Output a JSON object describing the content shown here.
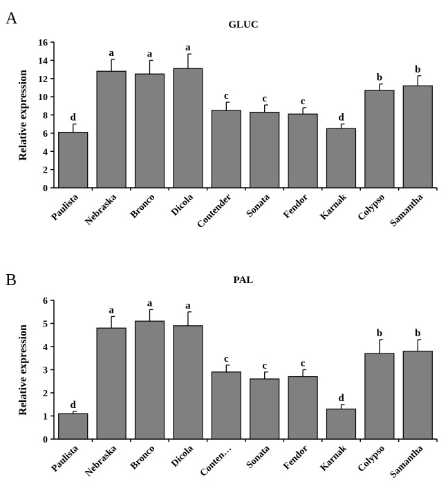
{
  "chart_data": [
    {
      "type": "bar",
      "panel": "A",
      "title": "GLUC",
      "xlabel": "",
      "ylabel": "Relative expression",
      "ylim": [
        0,
        16
      ],
      "yticks": [
        0,
        2,
        4,
        6,
        8,
        10,
        12,
        14,
        16
      ],
      "categories": [
        "Paulista",
        "Nebraska",
        "Bronco",
        "Dicola",
        "Contender",
        "Sonata",
        "Fendor",
        "Karnak",
        "Colypso",
        "Samantha"
      ],
      "values": [
        6.1,
        12.8,
        12.5,
        13.1,
        8.5,
        8.3,
        8.1,
        6.5,
        10.7,
        11.2
      ],
      "errors": [
        0.9,
        1.3,
        1.5,
        1.6,
        0.9,
        0.8,
        0.7,
        0.5,
        0.7,
        1.1
      ],
      "labels": [
        "d",
        "a",
        "a",
        "a",
        "c",
        "c",
        "c",
        "d",
        "b",
        "b"
      ]
    },
    {
      "type": "bar",
      "panel": "B",
      "title": "PAL",
      "xlabel": "",
      "ylabel": "Relative expression",
      "ylim": [
        0,
        6
      ],
      "yticks": [
        0,
        1,
        2,
        3,
        4,
        5,
        6
      ],
      "categories": [
        "Paulista",
        "Nebraska",
        "Bronco",
        "Dicola",
        "Conten…",
        "Sonata",
        "Fendor",
        "Karnak",
        "Colypso",
        "Samantha"
      ],
      "values": [
        1.1,
        4.8,
        5.1,
        4.9,
        2.9,
        2.6,
        2.7,
        1.3,
        3.7,
        3.8
      ],
      "errors": [
        0.1,
        0.5,
        0.5,
        0.6,
        0.3,
        0.3,
        0.3,
        0.2,
        0.6,
        0.5
      ],
      "labels": [
        "d",
        "a",
        "a",
        "a",
        "c",
        "c",
        "c",
        "d",
        "b",
        "b"
      ]
    }
  ]
}
